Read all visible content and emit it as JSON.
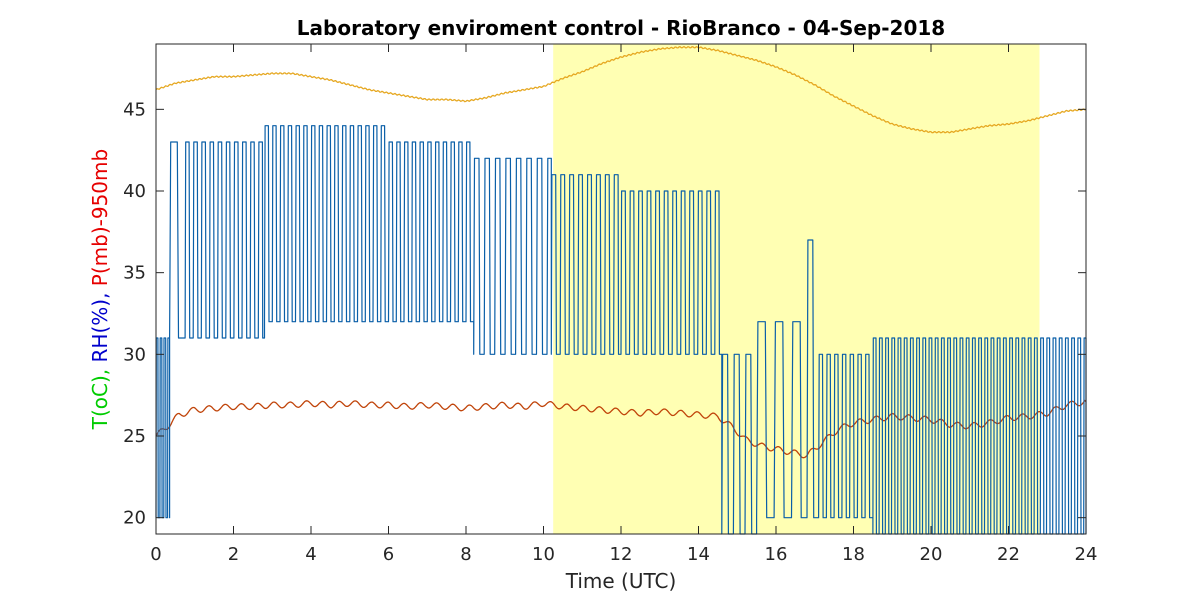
{
  "chart_data": {
    "type": "line",
    "title": "Laboratory enviroment control - RioBranco - 04-Sep-2018",
    "xlabel": "Time (UTC)",
    "ylabel_parts": [
      {
        "text": "T(oC), ",
        "color": "#00cc00"
      },
      {
        "text": "RH(%), ",
        "color": "#0000cc"
      },
      {
        "text": "P(mb)-950mb",
        "color": "#e60000"
      }
    ],
    "xlim": [
      0,
      24
    ],
    "ylim": [
      19,
      49
    ],
    "x_ticks": [
      0,
      2,
      4,
      6,
      8,
      10,
      12,
      14,
      16,
      18,
      20,
      22,
      24
    ],
    "y_ticks": [
      20,
      25,
      30,
      35,
      40,
      45
    ],
    "grid": false,
    "highlight": {
      "x_start": 10.25,
      "x_end": 22.8,
      "color": "#ffffb3"
    },
    "series": [
      {
        "key": "pressure",
        "color": "#e6a822",
        "x": [
          0,
          0.5,
          1,
          1.5,
          2,
          2.5,
          3,
          3.5,
          4,
          4.5,
          5,
          5.5,
          6,
          6.5,
          7,
          7.5,
          8,
          8.5,
          9,
          9.5,
          10,
          10.5,
          11,
          11.5,
          12,
          12.5,
          13,
          13.5,
          14,
          14.5,
          15,
          15.5,
          16,
          16.5,
          17,
          17.5,
          18,
          18.5,
          19,
          19.5,
          20,
          20.5,
          21,
          21.5,
          22,
          22.5,
          23,
          23.5,
          24
        ],
        "y": [
          46.2,
          46.6,
          46.8,
          47.0,
          47.0,
          47.1,
          47.2,
          47.2,
          47.0,
          46.8,
          46.5,
          46.2,
          46.0,
          45.8,
          45.6,
          45.6,
          45.5,
          45.7,
          46.0,
          46.2,
          46.4,
          46.9,
          47.3,
          47.8,
          48.2,
          48.5,
          48.7,
          48.8,
          48.8,
          48.6,
          48.3,
          48.0,
          47.6,
          47.1,
          46.5,
          45.8,
          45.2,
          44.6,
          44.1,
          43.8,
          43.6,
          43.6,
          43.8,
          44.0,
          44.1,
          44.3,
          44.6,
          44.9,
          45.0
        ]
      },
      {
        "key": "temperature",
        "color": "#c0440a",
        "x": [
          0,
          0.3,
          0.6,
          1,
          1.5,
          2,
          2.5,
          3,
          3.5,
          4,
          4.5,
          5,
          5.5,
          6,
          6.5,
          7,
          7.5,
          8,
          8.5,
          9,
          9.5,
          10,
          10.5,
          11,
          11.5,
          12,
          12.5,
          13,
          13.5,
          14,
          14.5,
          14.9,
          15.2,
          15.6,
          16,
          16.4,
          16.8,
          17.2,
          17.6,
          18,
          18.5,
          19,
          19.5,
          20,
          20.5,
          21,
          21.5,
          22,
          22.5,
          23,
          23.5,
          24
        ],
        "y": [
          25.0,
          25.6,
          26.3,
          26.6,
          26.7,
          26.8,
          26.8,
          26.9,
          26.9,
          27.0,
          26.9,
          27.0,
          26.9,
          26.9,
          26.8,
          26.9,
          26.8,
          26.7,
          26.8,
          26.9,
          26.8,
          27.0,
          26.8,
          26.7,
          26.6,
          26.5,
          26.4,
          26.5,
          26.4,
          26.3,
          26.2,
          25.5,
          24.8,
          24.4,
          24.2,
          24.0,
          23.8,
          24.6,
          25.4,
          25.8,
          26.0,
          26.2,
          26.1,
          26.0,
          25.7,
          25.6,
          25.8,
          26.1,
          26.2,
          26.4,
          26.9,
          27.1
        ]
      },
      {
        "key": "humidity",
        "color": "#0a5fa8",
        "segments": [
          {
            "x_start": 0.0,
            "x_end": 0.35,
            "low": 20,
            "high": 31,
            "period": 0.1
          },
          {
            "x_start": 0.35,
            "x_end": 0.75,
            "low": 31,
            "high": 43,
            "period": 0.4
          },
          {
            "x_start": 0.75,
            "x_end": 2.8,
            "low": 31,
            "high": 43,
            "period": 0.21
          },
          {
            "x_start": 2.8,
            "x_end": 6.0,
            "low": 32,
            "high": 44,
            "period": 0.2
          },
          {
            "x_start": 6.0,
            "x_end": 8.2,
            "low": 32,
            "high": 43,
            "period": 0.2
          },
          {
            "x_start": 8.2,
            "x_end": 10.2,
            "low": 30,
            "high": 42,
            "period": 0.27
          },
          {
            "x_start": 10.2,
            "x_end": 12.0,
            "low": 30,
            "high": 41,
            "period": 0.23
          },
          {
            "x_start": 12.0,
            "x_end": 14.6,
            "low": 30,
            "high": 40,
            "period": 0.22
          },
          {
            "x_start": 14.6,
            "x_end": 15.5,
            "low": 19,
            "high": 30,
            "period": 0.3
          },
          {
            "x_start": 15.5,
            "x_end": 16.8,
            "low": 20,
            "high": 32,
            "period": 0.45
          },
          {
            "x_start": 16.8,
            "x_end": 17.1,
            "low": 20,
            "high": 37,
            "period": 0.3
          },
          {
            "x_start": 17.1,
            "x_end": 18.5,
            "low": 20,
            "high": 30,
            "period": 0.2
          },
          {
            "x_start": 18.5,
            "x_end": 24.0,
            "low": 19,
            "high": 31,
            "period": 0.16
          }
        ]
      }
    ]
  }
}
